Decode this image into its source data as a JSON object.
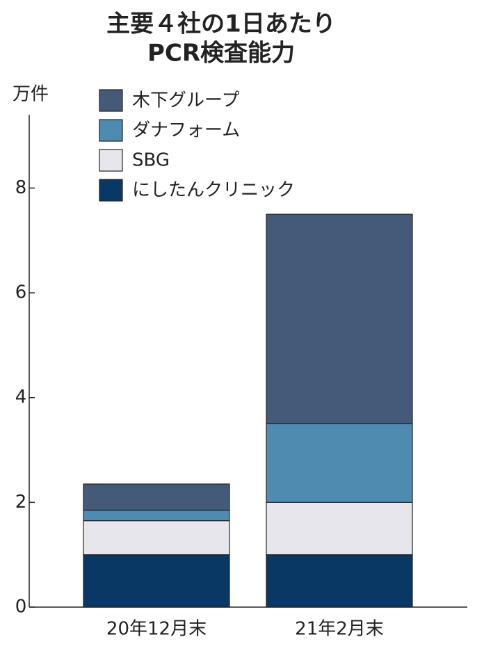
{
  "chart_data": {
    "type": "stacked_bar",
    "title": [
      "主要４社の1日あたり",
      "PCR検査能力"
    ],
    "y_axis_label": "万件",
    "categories": [
      "20年12月末",
      "21年2月末"
    ],
    "series": [
      {
        "name": "にしたんクリニック",
        "color": "#0a3864",
        "values": [
          1.0,
          1.0
        ]
      },
      {
        "name": "SBG",
        "color": "#e6e6ec",
        "values": [
          0.65,
          1.0
        ]
      },
      {
        "name": "ダナフォーム",
        "color": "#4f8bb0",
        "values": [
          0.2,
          1.5
        ]
      },
      {
        "name": "木下グループ",
        "color": "#445a78",
        "values": [
          0.5,
          4.0
        ]
      }
    ],
    "ylim": [
      0,
      9.4
    ],
    "yticks": [
      0,
      2,
      4,
      6,
      8
    ]
  }
}
